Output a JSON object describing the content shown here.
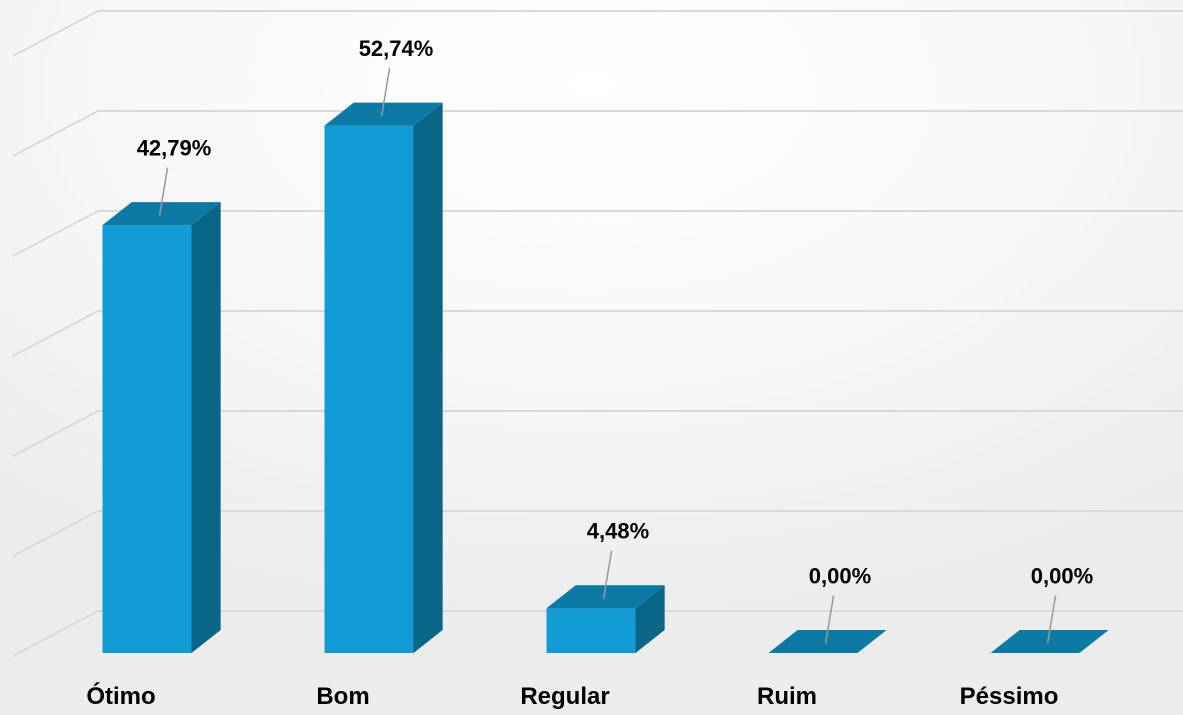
{
  "chart_data": {
    "type": "bar",
    "categories": [
      "Ótimo",
      "Bom",
      "Regular",
      "Ruim",
      "Péssimo"
    ],
    "values": [
      42.79,
      52.74,
      4.48,
      0.0,
      0.0
    ],
    "data_labels": [
      "42,79%",
      "52,74%",
      "4,48%",
      "0,00%",
      "0,00%"
    ],
    "title": "",
    "xlabel": "",
    "ylabel": "",
    "ylim": [
      0,
      60
    ],
    "grid": true,
    "legend": "none",
    "style": "3d-column"
  },
  "colors": {
    "bar_front": "#119cd5",
    "bar_top": "#0d7aa6",
    "bar_side": "#0a6687",
    "grid": "#d9d9d9",
    "leader": "#999999"
  }
}
